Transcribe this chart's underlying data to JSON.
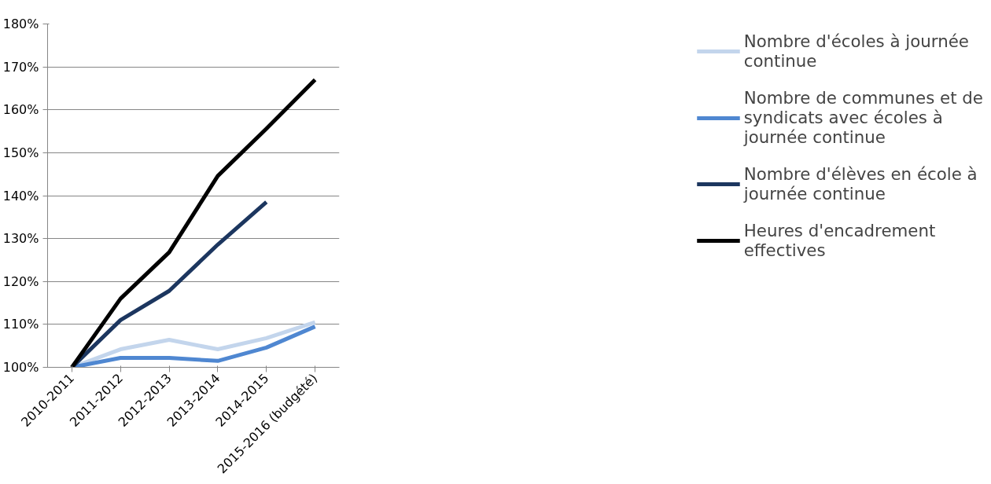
{
  "chart_data": {
    "type": "line",
    "categories": [
      "2010-2011",
      "2011-2012",
      "2012-2013",
      "2013-2014",
      "2014-2015",
      "2015-2016 (budgété)"
    ],
    "series": [
      {
        "name": "Nombre d'écoles à journée continue",
        "color": "#c3d5ec",
        "values": [
          100,
          104.2,
          106.4,
          104.2,
          106.8,
          110.5
        ]
      },
      {
        "name": "Nombre de communes et de syndicats avec écoles à journée continue",
        "color": "#4f87d1",
        "values": [
          100,
          102.2,
          102.2,
          101.5,
          104.6,
          109.5
        ]
      },
      {
        "name": "Nombre d'élèves en école à journée continue",
        "color": "#1c365f",
        "values": [
          100,
          111,
          117.8,
          128.6,
          138.5,
          null
        ]
      },
      {
        "name": "Heures d'encadrement effectives",
        "color": "#000000",
        "values": [
          100,
          116,
          126.8,
          144.6,
          155.6,
          167
        ]
      }
    ],
    "ylim": [
      100,
      180
    ],
    "yticks": [
      {
        "value": 100,
        "label": "100%"
      },
      {
        "value": 110,
        "label": "110%"
      },
      {
        "value": 120,
        "label": "120%"
      },
      {
        "value": 130,
        "label": "130%"
      },
      {
        "value": 140,
        "label": "140%"
      },
      {
        "value": 150,
        "label": "150%"
      },
      {
        "value": 160,
        "label": "160%"
      },
      {
        "value": 170,
        "label": "170%"
      },
      {
        "value": 180,
        "label": "180%"
      }
    ],
    "grid": "y",
    "legend": "right",
    "marker": "none",
    "line_style": "solid"
  }
}
